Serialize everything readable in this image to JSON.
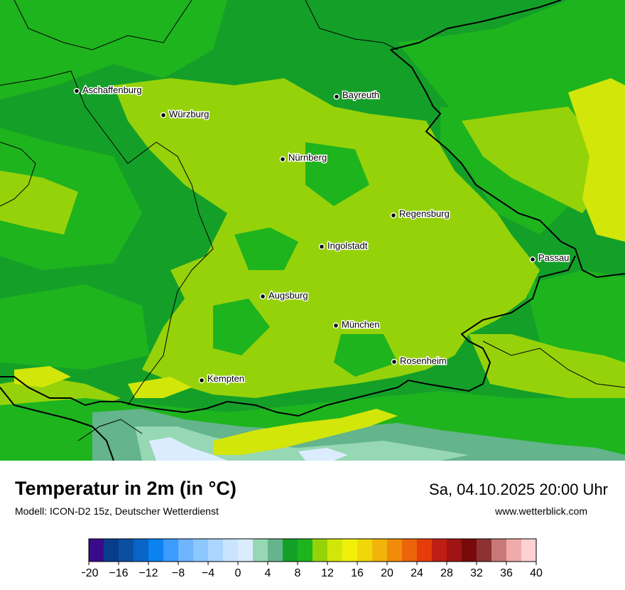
{
  "title": "Temperatur in 2m (in °C)",
  "subtitle": "Modell: ICON-D2 15z, Deutscher Wetterdienst",
  "datetime": "Sa, 04.10.2025 20:00 Uhr",
  "website": "www.wetterblick.com",
  "cities": [
    {
      "name": "Aschaffenburg"
    },
    {
      "name": "Würzburg"
    },
    {
      "name": "Bayreuth"
    },
    {
      "name": "Nürnberg"
    },
    {
      "name": "Regensburg"
    },
    {
      "name": "Ingolstadt"
    },
    {
      "name": "Passau"
    },
    {
      "name": "Augsburg"
    },
    {
      "name": "München"
    },
    {
      "name": "Rosenheim"
    },
    {
      "name": "Kempten"
    }
  ],
  "legend": {
    "min": -20,
    "max": 40,
    "step": 2,
    "tick_labels": [
      "−20",
      "−16",
      "−12",
      "−8",
      "−4",
      "0",
      "4",
      "8",
      "12",
      "16",
      "20",
      "24",
      "28",
      "32",
      "36",
      "40"
    ],
    "colors": [
      "#3a0a8a",
      "#0a3c8c",
      "#0a4fa0",
      "#0a64c8",
      "#0a82f0",
      "#3c9bff",
      "#6eb4ff",
      "#8cc8ff",
      "#aad6ff",
      "#c8e4ff",
      "#dcecff",
      "#96d7b4",
      "#64b48c",
      "#14a028",
      "#1eb41e",
      "#96d20a",
      "#d2e60a",
      "#f0f00a",
      "#f0d70a",
      "#f0b40a",
      "#f08c0a",
      "#eb640a",
      "#e63c0a",
      "#be1e14",
      "#a01414",
      "#780a0a",
      "#8c3232",
      "#c87878",
      "#f0aaaa",
      "#ffd2d2"
    ]
  },
  "map_colors": {
    "green_dark": "#14a028",
    "green_mid": "#1eb41e",
    "green_light": "#96d20a",
    "yellow_green": "#d2e60a",
    "alpine": "#64b48c",
    "snow": "#dcecff",
    "border": "#000000"
  }
}
